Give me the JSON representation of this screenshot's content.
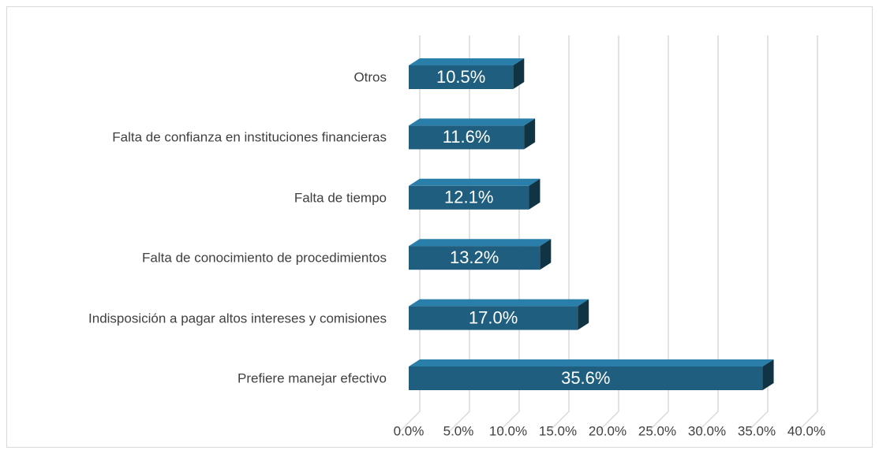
{
  "chart_data": {
    "type": "bar3d_horizontal",
    "categories": [
      "Otros",
      "Falta de confianza en instituciones financieras",
      "Falta de tiempo",
      "Falta de conocimiento de procedimientos",
      "Indisposición a pagar altos intereses y comisiones",
      "Prefiere manejar efectivo"
    ],
    "values": [
      10.5,
      11.6,
      12.1,
      13.2,
      17.0,
      35.6
    ],
    "value_labels": [
      "10.5%",
      "11.6%",
      "12.1%",
      "13.2%",
      "17.0%",
      "35.6%"
    ],
    "color": "#1f5e7e",
    "xlim": [
      0,
      40
    ],
    "xticks": [
      {
        "value": 0,
        "label": "0.0%"
      },
      {
        "value": 5,
        "label": "5.0%"
      },
      {
        "value": 10,
        "label": "10.0%"
      },
      {
        "value": 15,
        "label": "15.0%"
      },
      {
        "value": 20,
        "label": "20.0%"
      },
      {
        "value": 25,
        "label": "25.0%"
      },
      {
        "value": 30,
        "label": "30.0%"
      },
      {
        "value": 35,
        "label": "35.0%"
      },
      {
        "value": 40,
        "label": "40.0%"
      }
    ],
    "grid": true
  }
}
